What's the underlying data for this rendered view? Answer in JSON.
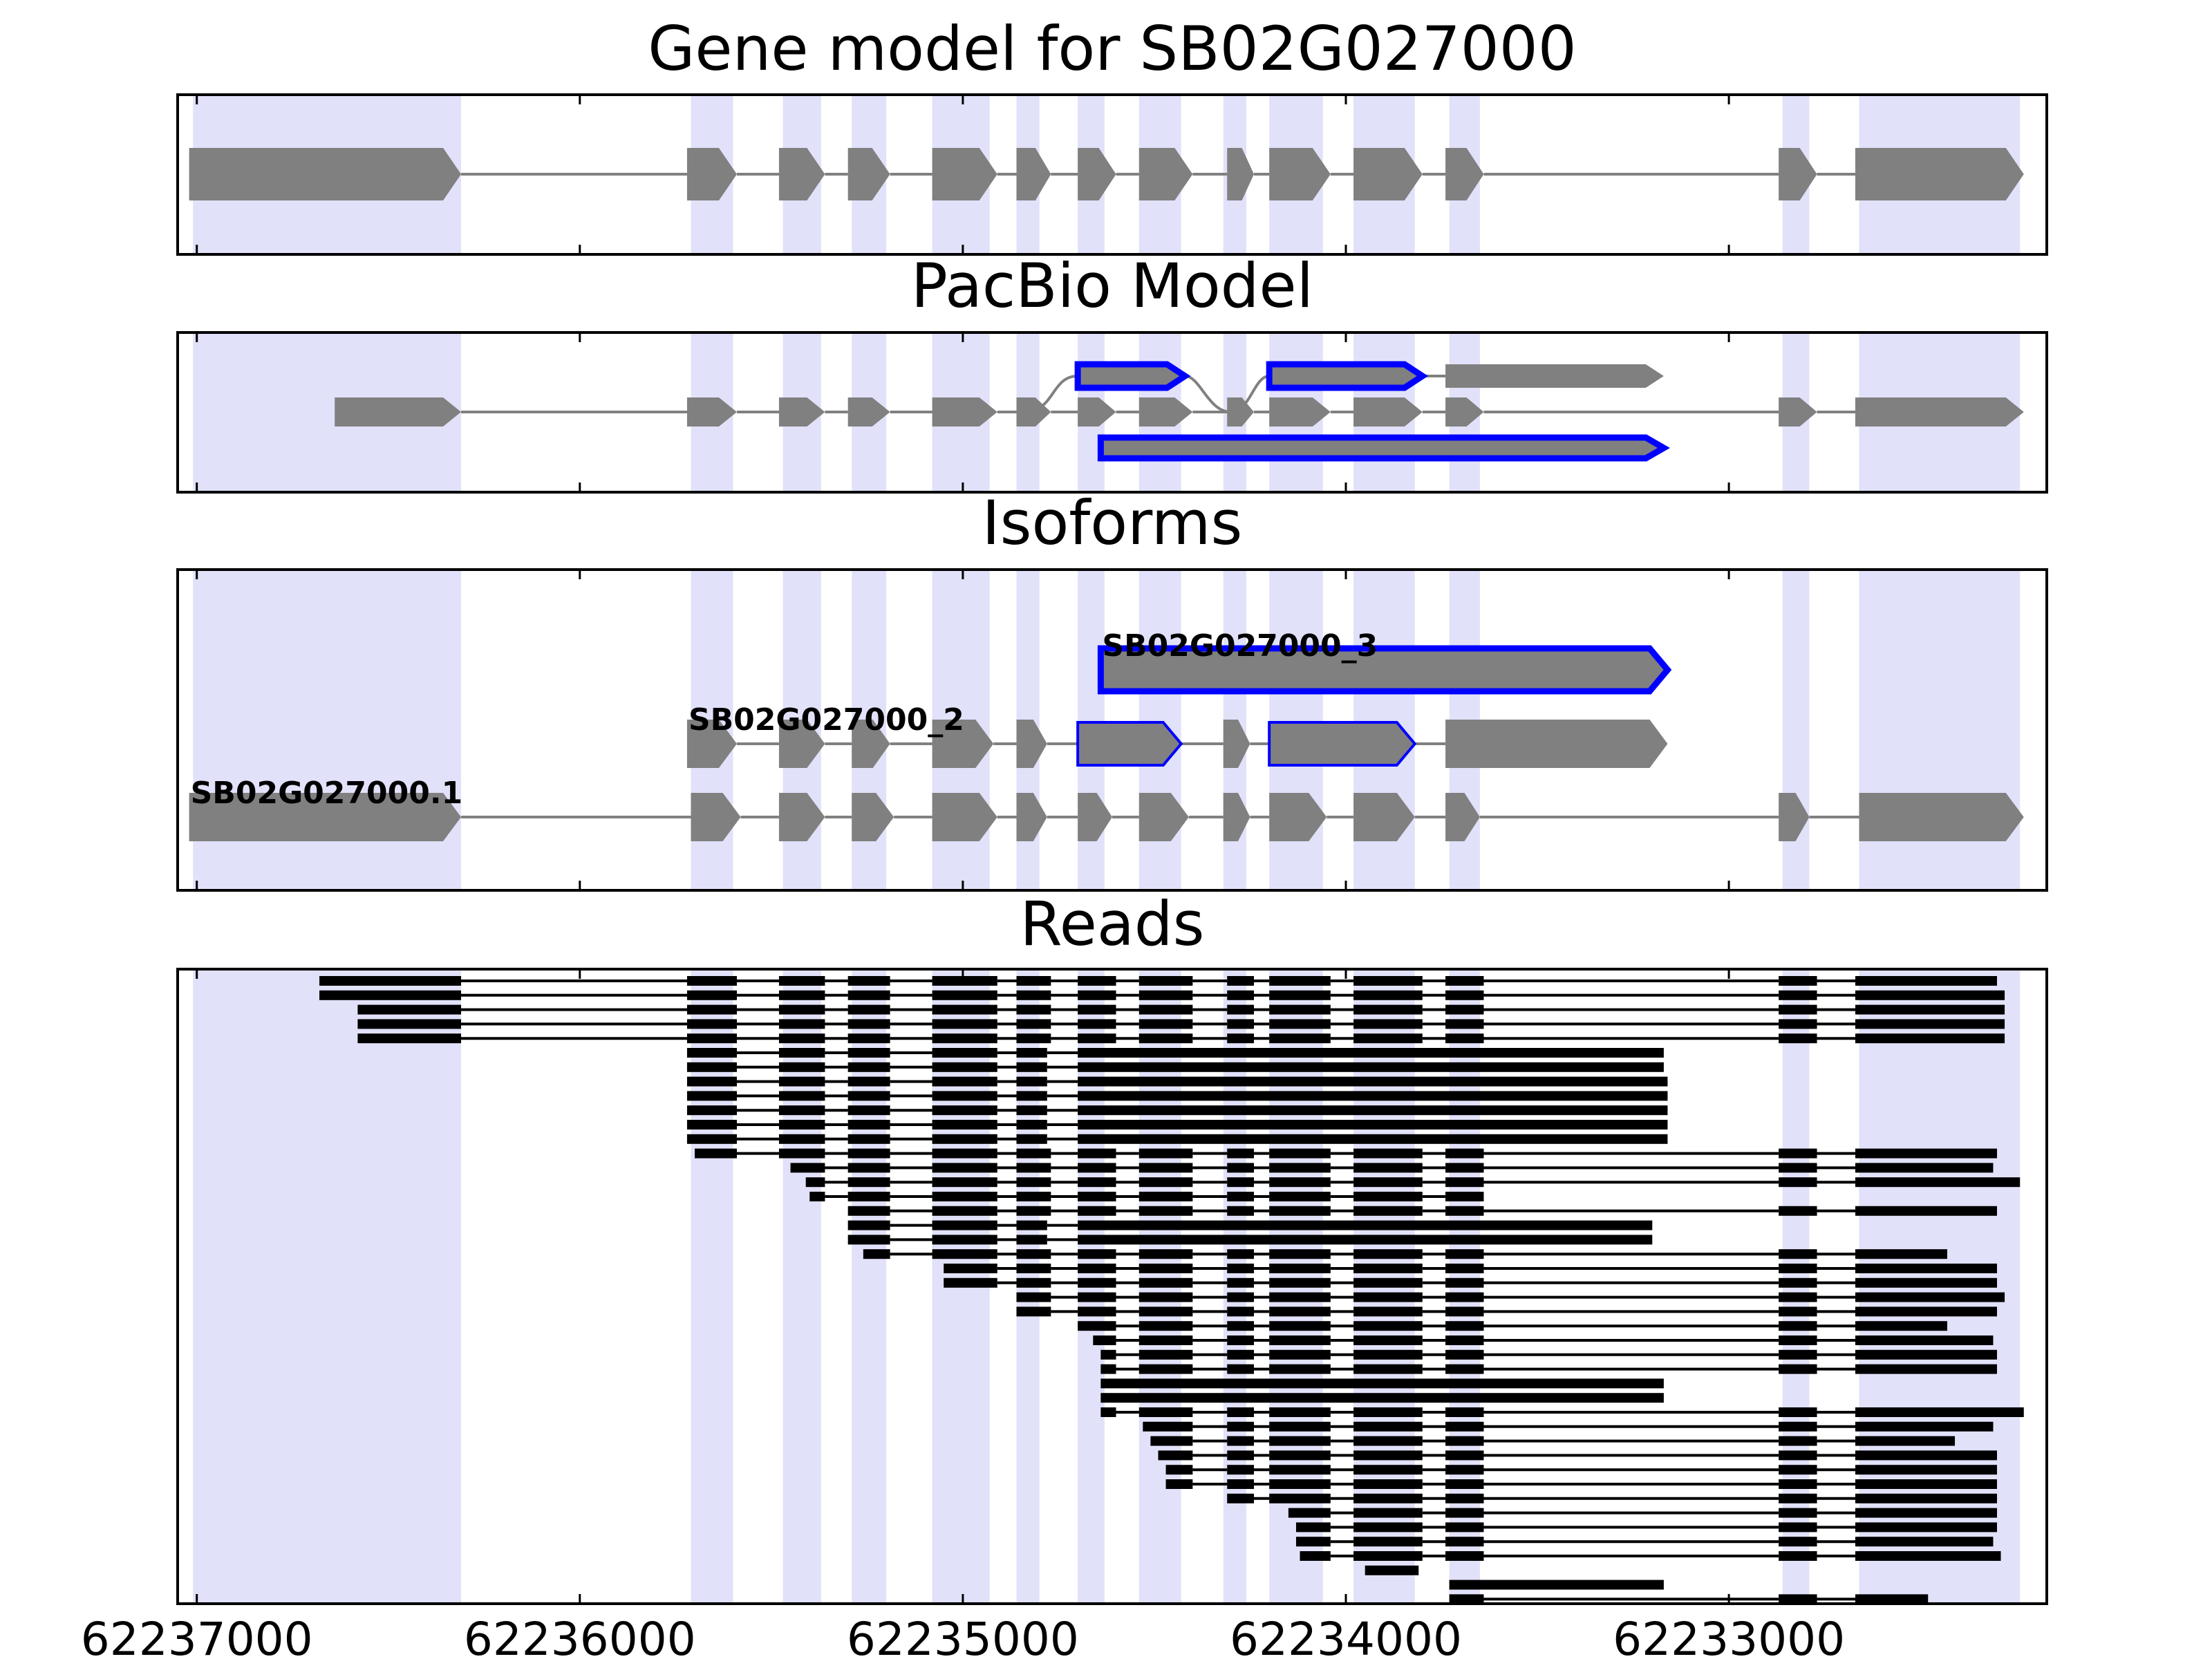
{
  "chart_data": {
    "type": "gene-structure-track",
    "axis": {
      "reversed": true,
      "xlim": [
        62237050,
        62232170
      ],
      "ticks": [
        62237000,
        62236000,
        62235000,
        62234000,
        62233000
      ],
      "tick_labels": [
        "62237000",
        "62236000",
        "62235000",
        "62234000",
        "62233000"
      ]
    },
    "colors": {
      "exon_fill": "#808080",
      "intron": "#808080",
      "highlight": "#0000ff",
      "exon_band": "#e1e1fa",
      "read": "#000000"
    },
    "exon_bands": [
      [
        62237010,
        62236310
      ],
      [
        62235710,
        62235600
      ],
      [
        62235470,
        62235370
      ],
      [
        62235290,
        62235200
      ],
      [
        62235080,
        62234930
      ],
      [
        62234860,
        62234800
      ],
      [
        62234700,
        62234630
      ],
      [
        62234540,
        62234430
      ],
      [
        62234320,
        62234260
      ],
      [
        62234200,
        62234060
      ],
      [
        62233980,
        62233820
      ],
      [
        62233730,
        62233650
      ],
      [
        62232860,
        62232790
      ],
      [
        62232660,
        62232240
      ]
    ],
    "panels": [
      {
        "id": "gene",
        "title": "Gene model for SB02G027000",
        "tracks": [
          {
            "exons": [
              [
                62237020,
                62236310
              ],
              [
                62235720,
                62235590
              ],
              [
                62235480,
                62235360
              ],
              [
                62235300,
                62235190
              ],
              [
                62235080,
                62234910
              ],
              [
                62234860,
                62234770
              ],
              [
                62234700,
                62234600
              ],
              [
                62234540,
                62234400
              ],
              [
                62234310,
                62234240
              ],
              [
                62234200,
                62234040
              ],
              [
                62233980,
                62233800
              ],
              [
                62233740,
                62233640
              ],
              [
                62232870,
                62232770
              ],
              [
                62232670,
                62232230
              ]
            ]
          }
        ]
      },
      {
        "id": "pacbio",
        "title": "PacBio Model",
        "tracks": [
          {
            "exons": [
              [
                62236640,
                62236310
              ],
              [
                62235720,
                62235590
              ],
              [
                62235480,
                62235360
              ],
              [
                62235300,
                62235190
              ],
              [
                62235080,
                62234910
              ],
              [
                62234860,
                62234770
              ],
              [
                62234700,
                62234600
              ],
              [
                62234540,
                62234400
              ],
              [
                62234310,
                62234240
              ],
              [
                62234200,
                62234040
              ],
              [
                62233980,
                62233800
              ],
              [
                62233740,
                62233640
              ],
              [
                62232870,
                62232770
              ],
              [
                62232670,
                62232230
              ]
            ]
          },
          {
            "alt": true,
            "exons": [
              [
                62234700,
                62234420
              ],
              [
                62234200,
                62233800
              ],
              [
                62233740,
                62233170
              ]
            ],
            "highlight": [
              0,
              1
            ]
          },
          {
            "exons": [
              [
                62234640,
                62233170
              ]
            ],
            "highlight": [
              0
            ]
          }
        ]
      },
      {
        "id": "isoforms",
        "title": "Isoforms",
        "tracks": [
          {
            "label": "SB02G027000.1",
            "exons": [
              [
                62237020,
                62236310
              ],
              [
                62235710,
                62235580
              ],
              [
                62235480,
                62235360
              ],
              [
                62235290,
                62235180
              ],
              [
                62235080,
                62234910
              ],
              [
                62234860,
                62234780
              ],
              [
                62234700,
                62234610
              ],
              [
                62234540,
                62234410
              ],
              [
                62234320,
                62234250
              ],
              [
                62234200,
                62234050
              ],
              [
                62233980,
                62233820
              ],
              [
                62233740,
                62233650
              ],
              [
                62232870,
                62232790
              ],
              [
                62232660,
                62232230
              ]
            ]
          },
          {
            "label": "SB02G027000_2",
            "exons": [
              [
                62235720,
                62235590
              ],
              [
                62235480,
                62235360
              ],
              [
                62235290,
                62235190
              ],
              [
                62235080,
                62234920
              ],
              [
                62234860,
                62234780
              ],
              [
                62234700,
                62234430
              ],
              [
                62234320,
                62234250
              ],
              [
                62234200,
                62233820
              ],
              [
                62233740,
                62233160
              ]
            ],
            "highlight": [
              5,
              7
            ]
          },
          {
            "label": "SB02G027000_3",
            "exons": [
              [
                62234640,
                62233160
              ]
            ],
            "highlight": [
              0
            ]
          }
        ]
      }
    ],
    "reads_panel": {
      "title": "Reads",
      "reads": [
        [
          62236680,
          62232300,
          "A"
        ],
        [
          62236680,
          62232280,
          "A"
        ],
        [
          62236580,
          62232280,
          "A"
        ],
        [
          62236580,
          62232280,
          "A"
        ],
        [
          62236580,
          62232280,
          "A"
        ],
        [
          62235720,
          62233170,
          "B"
        ],
        [
          62235720,
          62233170,
          "B"
        ],
        [
          62235720,
          62233160,
          "B"
        ],
        [
          62235720,
          62233160,
          "B"
        ],
        [
          62235720,
          62233160,
          "B"
        ],
        [
          62235720,
          62233160,
          "B"
        ],
        [
          62235720,
          62233160,
          "B"
        ],
        [
          62235700,
          62232300,
          "A"
        ],
        [
          62235450,
          62232310,
          "A"
        ],
        [
          62235410,
          62232240,
          "A"
        ],
        [
          62235400,
          62233170,
          "A"
        ],
        [
          62235300,
          62232300,
          "A"
        ],
        [
          62235300,
          62233200,
          "B"
        ],
        [
          62235300,
          62233200,
          "B"
        ],
        [
          62235260,
          62232430,
          "A"
        ],
        [
          62235050,
          62232300,
          "A"
        ],
        [
          62235050,
          62232300,
          "A"
        ],
        [
          62234880,
          62232280,
          "A"
        ],
        [
          62234860,
          62232300,
          "A"
        ],
        [
          62234700,
          62232430,
          "A"
        ],
        [
          62234660,
          62232310,
          "A"
        ],
        [
          62234640,
          62232300,
          "A"
        ],
        [
          62234640,
          62232300,
          "A"
        ],
        [
          62234640,
          62233170,
          "C"
        ],
        [
          62234640,
          62233170,
          "C"
        ],
        [
          62234640,
          62232230,
          "A"
        ],
        [
          62234530,
          62232310,
          "A"
        ],
        [
          62234510,
          62232410,
          "A"
        ],
        [
          62234490,
          62232300,
          "A"
        ],
        [
          62234470,
          62232300,
          "A"
        ],
        [
          62234470,
          62232300,
          "A"
        ],
        [
          62234310,
          62232300,
          "A"
        ],
        [
          62234150,
          62232300,
          "A"
        ],
        [
          62234130,
          62232300,
          "A"
        ],
        [
          62234130,
          62232310,
          "A"
        ],
        [
          62234120,
          62232290,
          "A"
        ],
        [
          62233950,
          62233810,
          "A"
        ],
        [
          62233730,
          62233170,
          "D"
        ],
        [
          62233730,
          62232480,
          "A"
        ]
      ]
    }
  }
}
